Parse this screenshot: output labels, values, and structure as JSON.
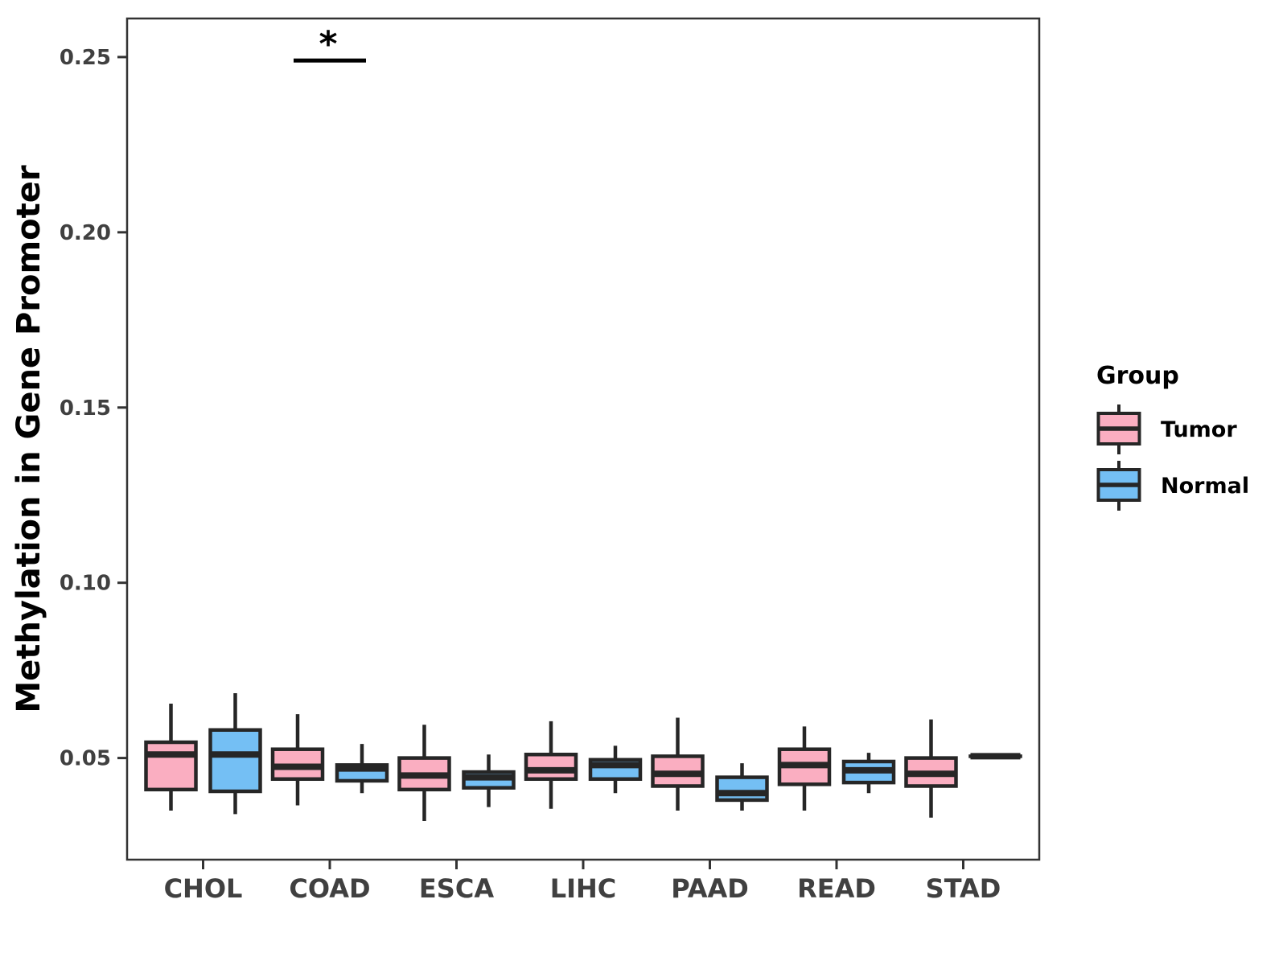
{
  "chart_data": {
    "type": "boxplot",
    "title": "",
    "xlabel": "",
    "ylabel": "Methylation in Gene Promoter",
    "categories": [
      "CHOL",
      "COAD",
      "ESCA",
      "LIHC",
      "PAAD",
      "READ",
      "STAD"
    ],
    "y_axis": {
      "ylim": [
        0.021,
        0.261
      ],
      "ticks": [
        {
          "value": 0.05,
          "label": "0.05"
        },
        {
          "value": 0.1,
          "label": "0.10"
        },
        {
          "value": 0.15,
          "label": "0.15"
        },
        {
          "value": 0.2,
          "label": "0.20"
        },
        {
          "value": 0.25,
          "label": "0.25"
        }
      ]
    },
    "grid": "off",
    "legend": {
      "title": "Group",
      "position": "right",
      "entries": [
        {
          "label": "Tumor",
          "color": "#FAAEC1"
        },
        {
          "label": "Normal",
          "color": "#74BFF4"
        }
      ]
    },
    "series": [
      {
        "name": "Tumor",
        "color": "#FAAEC1",
        "boxes": [
          {
            "category": "CHOL",
            "min": 0.035,
            "q1": 0.041,
            "median": 0.051,
            "q3": 0.0545,
            "max": 0.0655
          },
          {
            "category": "COAD",
            "min": 0.0365,
            "q1": 0.044,
            "median": 0.0475,
            "q3": 0.0525,
            "max": 0.0625
          },
          {
            "category": "ESCA",
            "min": 0.032,
            "q1": 0.041,
            "median": 0.045,
            "q3": 0.05,
            "max": 0.0595
          },
          {
            "category": "LIHC",
            "min": 0.0355,
            "q1": 0.044,
            "median": 0.0465,
            "q3": 0.051,
            "max": 0.0605
          },
          {
            "category": "PAAD",
            "min": 0.035,
            "q1": 0.042,
            "median": 0.0455,
            "q3": 0.0505,
            "max": 0.0615
          },
          {
            "category": "READ",
            "min": 0.035,
            "q1": 0.0425,
            "median": 0.048,
            "q3": 0.0525,
            "max": 0.059
          },
          {
            "category": "STAD",
            "min": 0.033,
            "q1": 0.042,
            "median": 0.0455,
            "q3": 0.05,
            "max": 0.061
          }
        ]
      },
      {
        "name": "Normal",
        "color": "#74BFF4",
        "boxes": [
          {
            "category": "CHOL",
            "min": 0.034,
            "q1": 0.0405,
            "median": 0.051,
            "q3": 0.058,
            "max": 0.0685
          },
          {
            "category": "COAD",
            "min": 0.04,
            "q1": 0.0435,
            "median": 0.047,
            "q3": 0.048,
            "max": 0.054
          },
          {
            "category": "ESCA",
            "min": 0.036,
            "q1": 0.0415,
            "median": 0.0445,
            "q3": 0.046,
            "max": 0.051
          },
          {
            "category": "LIHC",
            "min": 0.04,
            "q1": 0.044,
            "median": 0.048,
            "q3": 0.0495,
            "max": 0.0535
          },
          {
            "category": "PAAD",
            "min": 0.035,
            "q1": 0.038,
            "median": 0.04,
            "q3": 0.0445,
            "max": 0.0485
          },
          {
            "category": "READ",
            "min": 0.04,
            "q1": 0.043,
            "median": 0.0465,
            "q3": 0.049,
            "max": 0.0515
          },
          {
            "category": "STAD",
            "min": 0.0505,
            "q1": 0.0505,
            "median": 0.0505,
            "q3": 0.0505,
            "max": 0.0505
          }
        ]
      }
    ],
    "significance": [
      {
        "category": "COAD",
        "label": "*",
        "bar_y": 0.249
      }
    ],
    "colors": {
      "tumor_fill": "#FAAEC1",
      "normal_fill": "#74BFF4",
      "box_stroke": "#262626",
      "axis_line": "#333333",
      "axis_text": "#404040",
      "annotation": "#000000",
      "background": "#FFFFFF"
    }
  }
}
